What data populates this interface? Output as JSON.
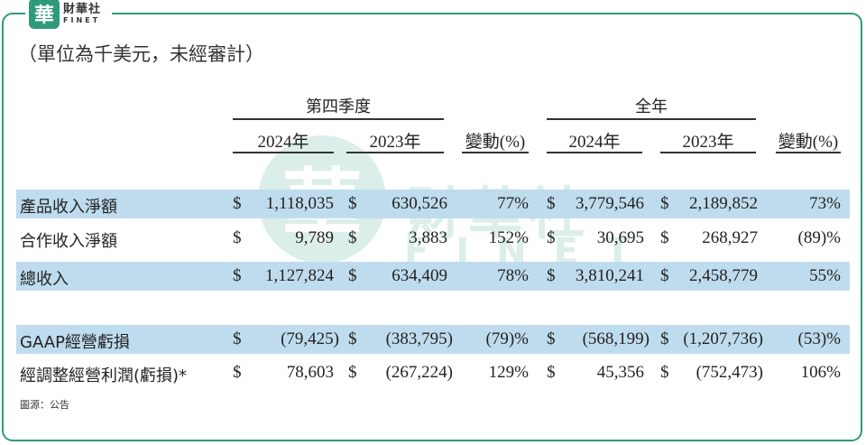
{
  "logo": {
    "mark": "華",
    "cn": "財華社",
    "en": "FINET"
  },
  "unit_note": "（單位為千美元，未經審計）",
  "watermark": {
    "mark": "華",
    "cn": "財華社",
    "en": "FINET"
  },
  "headers": {
    "q4": "第四季度",
    "full_year": "全年",
    "y2024": "2024年",
    "y2023": "2023年",
    "change": "變動(%)"
  },
  "currency": "$",
  "rows": [
    {
      "label": "產品收入淨額",
      "q4_2024": "1,118,035",
      "q4_2023": "630,526",
      "q4_chg": "77%",
      "fy_2024": "3,779,546",
      "fy_2023": "2,189,852",
      "fy_chg": "73%"
    },
    {
      "label": "合作收入淨額",
      "q4_2024": "9,789",
      "q4_2023": "3,883",
      "q4_chg": "152%",
      "fy_2024": "30,695",
      "fy_2023": "268,927",
      "fy_chg": "(89)%"
    },
    {
      "label": "總收入",
      "q4_2024": "1,127,824",
      "q4_2023": "634,409",
      "q4_chg": "78%",
      "fy_2024": "3,810,241",
      "fy_2023": "2,458,779",
      "fy_chg": "55%"
    },
    {
      "label": "GAAP經營虧損",
      "q4_2024": "(79,425)",
      "q4_2023": "(383,795)",
      "q4_chg": "(79)%",
      "fy_2024": "(568,199)",
      "fy_2023": "(1,207,736)",
      "fy_chg": "(53)%"
    },
    {
      "label": "經調整經營利潤(虧損)*",
      "q4_2024": "78,603",
      "q4_2023": "(267,224)",
      "q4_chg": "129%",
      "fy_2024": "45,356",
      "fy_2023": "(752,473)",
      "fy_chg": "106%"
    }
  ],
  "source": "圖源：公告"
}
